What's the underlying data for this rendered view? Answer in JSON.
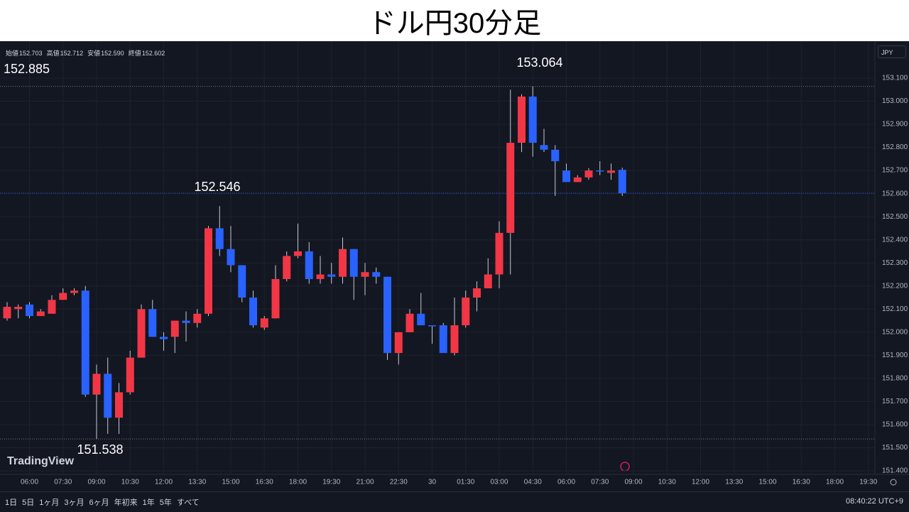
{
  "chart_data": {
    "type": "candlestick",
    "title": "ドル円30分足",
    "legend_ohlc": [
      {
        "name": "始値",
        "value": 152.703,
        "label": "152.703"
      },
      {
        "name": "高値",
        "value": 152.712,
        "label": "152.712"
      },
      {
        "name": "安値",
        "value": 152.59,
        "label": "152.590"
      },
      {
        "name": "終値",
        "value": 152.602,
        "label": "152.602"
      }
    ],
    "currency": "JPY",
    "brand": "TradingView",
    "categories": [
      null,
      null,
      "06:00",
      null,
      null,
      "07:30",
      null,
      null,
      "09:00",
      null,
      null,
      "10:30",
      null,
      null,
      "12:00",
      null,
      null,
      "13:30",
      null,
      null,
      "15:00",
      null,
      null,
      "16:30",
      null,
      null,
      "18:00",
      null,
      null,
      "19:30",
      null,
      null,
      "21:00",
      null,
      null,
      "22:30",
      null,
      null,
      "30",
      null,
      null,
      "01:30",
      null,
      null,
      "03:00",
      null,
      null,
      "04:30",
      null,
      null,
      "06:00",
      null,
      null,
      "07:30",
      null,
      null
    ],
    "future_labels": [
      "09:00",
      "10:30",
      "12:00",
      "13:30",
      "15:00",
      "16:30",
      "18:00",
      "19:30"
    ],
    "open": [
      152.06,
      152.1,
      152.12,
      152.07,
      152.08,
      152.14,
      152.17,
      152.18,
      151.73,
      151.82,
      151.63,
      151.74,
      151.89,
      152.1,
      151.98,
      151.98,
      152.05,
      152.04,
      152.08,
      152.45,
      152.36,
      152.29,
      152.15,
      152.02,
      152.06,
      152.23,
      152.33,
      152.35,
      152.23,
      152.25,
      152.24,
      152.36,
      152.24,
      152.26,
      152.24,
      151.91,
      152.0,
      152.08,
      152.03,
      152.03,
      151.91,
      152.03,
      152.15,
      152.19,
      152.25,
      152.43,
      152.82,
      153.02,
      152.81,
      152.79,
      152.7,
      152.65,
      152.67,
      152.7,
      152.69,
      152.703
    ],
    "high": [
      152.13,
      152.12,
      152.13,
      152.1,
      152.16,
      152.19,
      152.19,
      152.2,
      151.86,
      151.89,
      151.78,
      151.92,
      152.12,
      152.14,
      152.0,
      152.05,
      152.09,
      152.1,
      152.46,
      152.546,
      152.46,
      152.29,
      152.18,
      152.07,
      152.29,
      152.35,
      152.47,
      152.39,
      152.33,
      152.3,
      152.41,
      152.36,
      152.3,
      152.28,
      152.24,
      152.0,
      152.1,
      152.17,
      152.03,
      152.04,
      152.15,
      152.18,
      152.22,
      152.32,
      152.48,
      153.05,
      153.03,
      153.064,
      152.88,
      152.81,
      152.73,
      152.68,
      152.71,
      152.74,
      152.73,
      152.712
    ],
    "low": [
      152.05,
      152.06,
      152.06,
      152.07,
      152.08,
      152.14,
      152.16,
      151.72,
      151.538,
      151.56,
      151.56,
      151.73,
      151.89,
      151.98,
      151.92,
      151.91,
      151.96,
      152.02,
      152.07,
      152.33,
      152.26,
      152.13,
      152.02,
      152.01,
      152.06,
      152.22,
      152.32,
      152.21,
      152.21,
      152.21,
      152.21,
      152.14,
      152.16,
      152.21,
      151.88,
      151.86,
      152.0,
      152.03,
      151.95,
      151.91,
      151.9,
      152.02,
      152.09,
      152.19,
      152.19,
      152.25,
      152.78,
      152.76,
      152.78,
      152.59,
      152.65,
      152.65,
      152.66,
      152.68,
      152.66,
      152.59
    ],
    "close": [
      152.11,
      152.11,
      152.07,
      152.09,
      152.14,
      152.17,
      152.18,
      151.73,
      151.82,
      151.63,
      151.74,
      151.89,
      152.1,
      151.98,
      151.97,
      152.05,
      152.04,
      152.08,
      152.45,
      152.36,
      152.29,
      152.15,
      152.03,
      152.06,
      152.23,
      152.33,
      152.35,
      152.23,
      152.25,
      152.24,
      152.36,
      152.24,
      152.26,
      152.24,
      151.91,
      152.0,
      152.08,
      152.03,
      152.03,
      151.91,
      152.03,
      152.15,
      152.19,
      152.25,
      152.43,
      152.82,
      153.02,
      152.82,
      152.79,
      152.74,
      152.65,
      152.67,
      152.7,
      152.7,
      152.7,
      152.602
    ],
    "up_color": "#f23645",
    "down_color": "#2962ff",
    "ylim": [
      151.385,
      153.245
    ],
    "yticks": [
      {
        "value": 151.4,
        "label": "151.400"
      },
      {
        "value": 151.5,
        "label": "151.500"
      },
      {
        "value": 151.6,
        "label": "151.600"
      },
      {
        "value": 151.7,
        "label": "151.700"
      },
      {
        "value": 151.8,
        "label": "151.800"
      },
      {
        "value": 151.9,
        "label": "151.900"
      },
      {
        "value": 152.0,
        "label": "152.000"
      },
      {
        "value": 152.1,
        "label": "152.100"
      },
      {
        "value": 152.2,
        "label": "152.200"
      },
      {
        "value": 152.3,
        "label": "152.300"
      },
      {
        "value": 152.4,
        "label": "152.400"
      },
      {
        "value": 152.5,
        "label": "152.500"
      },
      {
        "value": 152.6,
        "label": "152.600"
      },
      {
        "value": 152.7,
        "label": "152.700"
      },
      {
        "value": 152.8,
        "label": "152.800"
      },
      {
        "value": 152.9,
        "label": "152.900"
      },
      {
        "value": 153.0,
        "label": "153.000"
      },
      {
        "value": 153.1,
        "label": "153.100"
      }
    ],
    "grid": true,
    "annotations": [
      152.885,
      153.064,
      152.546,
      151.538
    ],
    "range_buttons": [
      "1日",
      "5日",
      "1ヶ月",
      "3ヶ月",
      "6ヶ月",
      "年初来",
      "1年",
      "5年",
      "すべて"
    ],
    "clock": "08:40:22 UTC+9"
  }
}
